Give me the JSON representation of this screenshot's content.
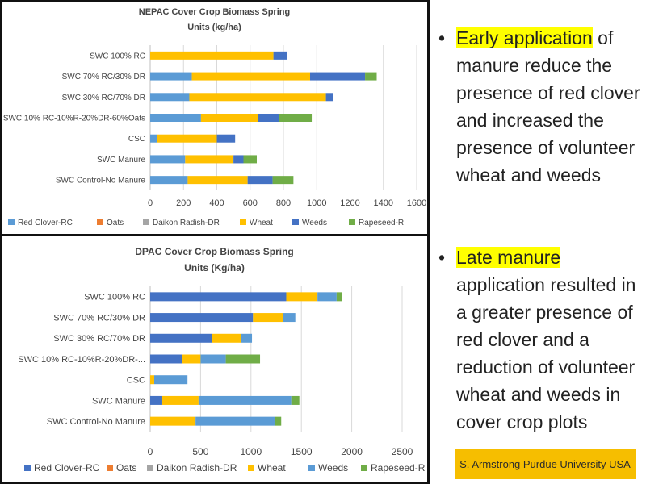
{
  "chart_data": [
    {
      "type": "bar",
      "orientation": "horizontal",
      "stacked": true,
      "title": "NEPAC Cover Crop Biomass Spring",
      "subtitle": "Units (kg/ha)",
      "xlim": [
        0,
        1600
      ],
      "xticks": [
        0,
        200,
        400,
        600,
        800,
        1000,
        1200,
        1400,
        1600
      ],
      "grid": true,
      "legend_position": "bottom",
      "categories": [
        "SWC 100% RC",
        "SWC 70% RC/30% DR",
        "SWC 30% RC/70% DR",
        "SWC 10% RC-10%R-20%DR-60%Oats",
        "CSC",
        "SWC Manure",
        "SWC Control-No Manure"
      ],
      "series": [
        {
          "name": "Red Clover-RC",
          "color": "#5b9bd5",
          "values": [
            0,
            250,
            235,
            305,
            40,
            210,
            225
          ]
        },
        {
          "name": "Oats",
          "color": "#ed7d31",
          "values": [
            0,
            0,
            0,
            0,
            0,
            0,
            0
          ]
        },
        {
          "name": "Daikon Radish-DR",
          "color": "#a5a5a5",
          "values": [
            0,
            0,
            0,
            0,
            0,
            0,
            0
          ]
        },
        {
          "name": "Wheat",
          "color": "#ffc000",
          "values": [
            740,
            710,
            820,
            340,
            360,
            290,
            360
          ]
        },
        {
          "name": "Weeds",
          "color": "#4472c4",
          "values": [
            80,
            330,
            45,
            130,
            110,
            60,
            150
          ]
        },
        {
          "name": "Rapeseed-R",
          "color": "#70ad47",
          "values": [
            0,
            70,
            0,
            195,
            0,
            80,
            125
          ]
        }
      ]
    },
    {
      "type": "bar",
      "orientation": "horizontal",
      "stacked": true,
      "title": "DPAC Cover Crop Biomass Spring",
      "subtitle": "Units (Kg/ha)",
      "xlim": [
        0,
        2500
      ],
      "xticks": [
        0,
        500,
        1000,
        1500,
        2000,
        2500
      ],
      "grid": true,
      "legend_position": "bottom",
      "categories": [
        "SWC 100% RC",
        "SWC 70% RC/30% DR",
        "SWC 30% RC/70% DR",
        "SWC 10% RC-10%R-20%DR-...",
        "CSC",
        "SWC Manure",
        "SWC Control-No Manure"
      ],
      "series": [
        {
          "name": "Red Clover-RC",
          "color": "#4472c4",
          "values": [
            1350,
            1020,
            610,
            320,
            0,
            120,
            0
          ]
        },
        {
          "name": "Oats",
          "color": "#ed7d31",
          "values": [
            0,
            0,
            0,
            0,
            0,
            0,
            0
          ]
        },
        {
          "name": "Daikon Radish-DR",
          "color": "#a5a5a5",
          "values": [
            0,
            0,
            0,
            0,
            0,
            0,
            0
          ]
        },
        {
          "name": "Wheat",
          "color": "#ffc000",
          "values": [
            310,
            300,
            290,
            180,
            40,
            360,
            450
          ]
        },
        {
          "name": "Weeds",
          "color": "#5b9bd5",
          "values": [
            190,
            120,
            110,
            250,
            330,
            920,
            790
          ]
        },
        {
          "name": "Rapeseed-R",
          "color": "#70ad47",
          "values": [
            50,
            0,
            0,
            340,
            0,
            80,
            60
          ]
        }
      ]
    }
  ],
  "bullets": [
    {
      "symbol": "•",
      "highlight": "Early application",
      "rest": " of manure reduce the presence of red clover and increased the presence of volunteer wheat and weeds"
    },
    {
      "symbol": "•",
      "highlight": "Late manure",
      "rest": " application resulted in a greater presence of red clover and a reduction of volunteer wheat and weeds in cover crop plots"
    }
  ],
  "credit": "S. Armstrong Purdue University USA",
  "colors": {
    "highlight": "#ffff00",
    "credit_bg": "#f6be00"
  }
}
